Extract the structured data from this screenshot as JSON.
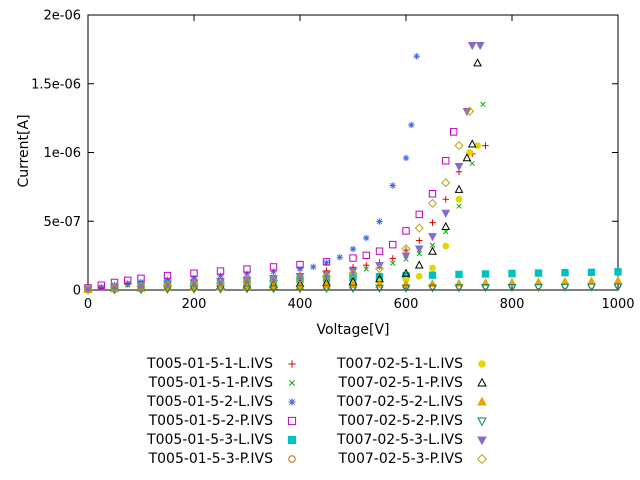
{
  "chart_data": {
    "type": "scatter",
    "title": "",
    "xlabel": "Voltage[V]",
    "ylabel": "Current[A]",
    "xlim": [
      0,
      1000
    ],
    "ylim": [
      0,
      2e-06
    ],
    "xticks": [
      0,
      200,
      400,
      600,
      800,
      1000
    ],
    "yticks": [
      {
        "v": 0,
        "label": "0"
      },
      {
        "v": 5e-07,
        "label": "5e-07"
      },
      {
        "v": 1e-06,
        "label": "1e-06"
      },
      {
        "v": 1.5e-06,
        "label": "1.5e-06"
      },
      {
        "v": 2e-06,
        "label": "2e-06"
      }
    ],
    "grid": false,
    "legend_position": "below-center-two-columns",
    "series": [
      {
        "name": "T005-01-5-1-L.IVS",
        "color": "#dd0000",
        "marker": "plus",
        "points": [
          [
            0,
            5e-09
          ],
          [
            25,
            1.8e-08
          ],
          [
            50,
            3.2e-08
          ],
          [
            75,
            4.2e-08
          ],
          [
            100,
            5.2e-08
          ],
          [
            150,
            6.4e-08
          ],
          [
            200,
            7.4e-08
          ],
          [
            250,
            8.4e-08
          ],
          [
            300,
            9.4e-08
          ],
          [
            350,
            1.05e-07
          ],
          [
            400,
            1.2e-07
          ],
          [
            450,
            1.4e-07
          ],
          [
            500,
            1.65e-07
          ],
          [
            525,
            1.8e-07
          ],
          [
            550,
            2e-07
          ],
          [
            575,
            2.3e-07
          ],
          [
            600,
            2.9e-07
          ],
          [
            625,
            3.6e-07
          ],
          [
            650,
            4.9e-07
          ],
          [
            675,
            6.6e-07
          ],
          [
            700,
            8.6e-07
          ],
          [
            725,
            9.9e-07
          ],
          [
            750,
            1.05e-06
          ]
        ]
      },
      {
        "name": "T005-01-5-1-P.IVS",
        "color": "#00b000",
        "marker": "cross",
        "points": [
          [
            0,
            4e-09
          ],
          [
            25,
            1.4e-08
          ],
          [
            50,
            2.6e-08
          ],
          [
            75,
            3.6e-08
          ],
          [
            100,
            4.4e-08
          ],
          [
            150,
            5.4e-08
          ],
          [
            200,
            6.4e-08
          ],
          [
            250,
            7.2e-08
          ],
          [
            300,
            8e-08
          ],
          [
            350,
            9e-08
          ],
          [
            400,
            1.02e-07
          ],
          [
            450,
            1.18e-07
          ],
          [
            500,
            1.38e-07
          ],
          [
            525,
            1.52e-07
          ],
          [
            550,
            1.72e-07
          ],
          [
            575,
            1.95e-07
          ],
          [
            600,
            2.25e-07
          ],
          [
            625,
            2.65e-07
          ],
          [
            650,
            3.25e-07
          ],
          [
            675,
            4.25e-07
          ],
          [
            700,
            6.1e-07
          ],
          [
            725,
            9.2e-07
          ],
          [
            745,
            1.35e-06
          ]
        ]
      },
      {
        "name": "T005-01-5-2-L.IVS",
        "color": "#4169e1",
        "marker": "asterisk",
        "points": [
          [
            0,
            6e-09
          ],
          [
            25,
            2e-08
          ],
          [
            50,
            3.6e-08
          ],
          [
            75,
            4.8e-08
          ],
          [
            100,
            5.8e-08
          ],
          [
            150,
            7.3e-08
          ],
          [
            200,
            8.8e-08
          ],
          [
            250,
            1.03e-07
          ],
          [
            300,
            1.18e-07
          ],
          [
            350,
            1.33e-07
          ],
          [
            400,
            1.53e-07
          ],
          [
            425,
            1.68e-07
          ],
          [
            450,
            1.98e-07
          ],
          [
            475,
            2.38e-07
          ],
          [
            500,
            2.98e-07
          ],
          [
            525,
            3.78e-07
          ],
          [
            550,
            4.98e-07
          ],
          [
            575,
            7.6e-07
          ],
          [
            600,
            9.6e-07
          ],
          [
            610,
            1.2e-06
          ],
          [
            620,
            1.7e-06
          ]
        ]
      },
      {
        "name": "T005-01-5-2-P.IVS",
        "color": "#c000c0",
        "marker": "square",
        "points": [
          [
            0,
            1.5e-08
          ],
          [
            25,
            3.5e-08
          ],
          [
            50,
            5.5e-08
          ],
          [
            75,
            7e-08
          ],
          [
            100,
            8.5e-08
          ],
          [
            150,
            1.05e-07
          ],
          [
            200,
            1.22e-07
          ],
          [
            250,
            1.38e-07
          ],
          [
            300,
            1.52e-07
          ],
          [
            350,
            1.68e-07
          ],
          [
            400,
            1.85e-07
          ],
          [
            450,
            2.05e-07
          ],
          [
            500,
            2.32e-07
          ],
          [
            525,
            2.52e-07
          ],
          [
            550,
            2.82e-07
          ],
          [
            575,
            3.3e-07
          ],
          [
            600,
            4.3e-07
          ],
          [
            625,
            5.5e-07
          ],
          [
            650,
            7e-07
          ],
          [
            675,
            9.4e-07
          ],
          [
            690,
            1.15e-06
          ]
        ]
      },
      {
        "name": "T005-01-5-3-L.IVS",
        "color": "#00c0c0",
        "marker": "square-filled",
        "points": [
          [
            0,
            5e-09
          ],
          [
            50,
            2e-08
          ],
          [
            100,
            3.4e-08
          ],
          [
            150,
            4.4e-08
          ],
          [
            200,
            5.2e-08
          ],
          [
            250,
            5.9e-08
          ],
          [
            300,
            6.5e-08
          ],
          [
            350,
            7.1e-08
          ],
          [
            400,
            7.7e-08
          ],
          [
            450,
            8.4e-08
          ],
          [
            500,
            9.1e-08
          ],
          [
            550,
            9.7e-08
          ],
          [
            600,
            1.03e-07
          ],
          [
            650,
            1.08e-07
          ],
          [
            700,
            1.13e-07
          ],
          [
            750,
            1.17e-07
          ],
          [
            800,
            1.2e-07
          ],
          [
            850,
            1.23e-07
          ],
          [
            900,
            1.26e-07
          ],
          [
            950,
            1.29e-07
          ],
          [
            1000,
            1.32e-07
          ]
        ]
      },
      {
        "name": "T005-01-5-3-P.IVS",
        "color": "#cc6600",
        "marker": "circle",
        "points": [
          [
            0,
            2e-09
          ],
          [
            50,
            5e-09
          ],
          [
            100,
            8e-09
          ],
          [
            150,
            1.1e-08
          ],
          [
            200,
            1.3e-08
          ],
          [
            250,
            1.5e-08
          ],
          [
            300,
            1.6e-08
          ],
          [
            350,
            1.8e-08
          ],
          [
            400,
            1.9e-08
          ],
          [
            450,
            2.1e-08
          ],
          [
            500,
            2.2e-08
          ],
          [
            550,
            2.3e-08
          ],
          [
            600,
            2.5e-08
          ],
          [
            650,
            2.6e-08
          ],
          [
            700,
            2.7e-08
          ],
          [
            750,
            2.8e-08
          ],
          [
            800,
            3e-08
          ],
          [
            850,
            3.1e-08
          ],
          [
            900,
            3.2e-08
          ],
          [
            950,
            3.3e-08
          ],
          [
            1000,
            3.4e-08
          ]
        ]
      },
      {
        "name": "T007-02-5-1-L.IVS",
        "color": "#e0d800",
        "marker": "circle-filled",
        "points": [
          [
            0,
            3e-09
          ],
          [
            50,
            1e-08
          ],
          [
            100,
            1.6e-08
          ],
          [
            150,
            2.1e-08
          ],
          [
            200,
            2.5e-08
          ],
          [
            250,
            2.9e-08
          ],
          [
            300,
            3.3e-08
          ],
          [
            350,
            3.7e-08
          ],
          [
            400,
            4.1e-08
          ],
          [
            450,
            4.6e-08
          ],
          [
            500,
            5.2e-08
          ],
          [
            550,
            6e-08
          ],
          [
            600,
            7.5e-08
          ],
          [
            625,
            1e-07
          ],
          [
            650,
            1.6e-07
          ],
          [
            675,
            3.2e-07
          ],
          [
            700,
            6.6e-07
          ],
          [
            720,
            1e-06
          ],
          [
            735,
            1.05e-06
          ]
        ]
      },
      {
        "name": "T007-02-5-1-P.IVS",
        "color": "#000000",
        "marker": "triangle",
        "points": [
          [
            0,
            3e-09
          ],
          [
            50,
            9e-09
          ],
          [
            100,
            1.4e-08
          ],
          [
            150,
            1.9e-08
          ],
          [
            200,
            2.4e-08
          ],
          [
            250,
            2.9e-08
          ],
          [
            300,
            3.4e-08
          ],
          [
            350,
            3.9e-08
          ],
          [
            400,
            4.5e-08
          ],
          [
            450,
            5.2e-08
          ],
          [
            500,
            6.2e-08
          ],
          [
            550,
            8e-08
          ],
          [
            600,
            1.2e-07
          ],
          [
            625,
            1.8e-07
          ],
          [
            650,
            2.8e-07
          ],
          [
            675,
            4.6e-07
          ],
          [
            700,
            7.3e-07
          ],
          [
            715,
            9.6e-07
          ],
          [
            725,
            1.06e-06
          ],
          [
            735,
            1.65e-06
          ]
        ]
      },
      {
        "name": "T007-02-5-2-L.IVS",
        "color": "#f0a000",
        "marker": "triangle-filled",
        "points": [
          [
            0,
            2e-09
          ],
          [
            50,
            7e-09
          ],
          [
            100,
            1.1e-08
          ],
          [
            150,
            1.5e-08
          ],
          [
            200,
            1.8e-08
          ],
          [
            250,
            2.1e-08
          ],
          [
            300,
            2.4e-08
          ],
          [
            350,
            2.7e-08
          ],
          [
            400,
            3e-08
          ],
          [
            450,
            3.3e-08
          ],
          [
            500,
            3.6e-08
          ],
          [
            550,
            3.9e-08
          ],
          [
            600,
            4.2e-08
          ],
          [
            650,
            4.5e-08
          ],
          [
            700,
            4.8e-08
          ],
          [
            750,
            5.1e-08
          ],
          [
            800,
            5.4e-08
          ],
          [
            850,
            5.7e-08
          ],
          [
            900,
            6e-08
          ],
          [
            950,
            6.3e-08
          ],
          [
            1000,
            6.6e-08
          ]
        ]
      },
      {
        "name": "T007-02-5-2-P.IVS",
        "color": "#00876c",
        "marker": "triangle-down",
        "points": [
          [
            0,
            1e-09
          ],
          [
            50,
            3e-09
          ],
          [
            100,
            5e-09
          ],
          [
            150,
            7e-09
          ],
          [
            200,
            8e-09
          ],
          [
            250,
            9e-09
          ],
          [
            300,
            1e-08
          ],
          [
            350,
            1.1e-08
          ],
          [
            400,
            1.2e-08
          ],
          [
            450,
            1.3e-08
          ],
          [
            500,
            1.4e-08
          ],
          [
            550,
            1.5e-08
          ],
          [
            600,
            1.6e-08
          ],
          [
            650,
            1.7e-08
          ],
          [
            700,
            1.8e-08
          ],
          [
            750,
            1.9e-08
          ],
          [
            800,
            2e-08
          ],
          [
            850,
            2.1e-08
          ],
          [
            900,
            2.2e-08
          ],
          [
            950,
            2.3e-08
          ],
          [
            1000,
            2.4e-08
          ]
        ]
      },
      {
        "name": "T007-02-5-3-L.IVS",
        "color": "#8968cd",
        "marker": "triangle-down-filled",
        "points": [
          [
            0,
            5e-09
          ],
          [
            50,
            2e-08
          ],
          [
            100,
            3.2e-08
          ],
          [
            150,
            4.3e-08
          ],
          [
            200,
            5.3e-08
          ],
          [
            250,
            6.3e-08
          ],
          [
            300,
            7.3e-08
          ],
          [
            350,
            8.5e-08
          ],
          [
            400,
            9.9e-08
          ],
          [
            450,
            1.16e-07
          ],
          [
            500,
            1.4e-07
          ],
          [
            550,
            1.8e-07
          ],
          [
            600,
            2.5e-07
          ],
          [
            625,
            3e-07
          ],
          [
            650,
            3.9e-07
          ],
          [
            675,
            5.6e-07
          ],
          [
            700,
            9e-07
          ],
          [
            715,
            1.3e-06
          ],
          [
            725,
            1.78e-06
          ],
          [
            740,
            1.78e-06
          ]
        ]
      },
      {
        "name": "T007-02-5-3-P.IVS",
        "color": "#c0a000",
        "marker": "diamond",
        "points": [
          [
            0,
            4e-09
          ],
          [
            50,
            1.5e-08
          ],
          [
            100,
            2.5e-08
          ],
          [
            150,
            3.4e-08
          ],
          [
            200,
            4.2e-08
          ],
          [
            250,
            5.1e-08
          ],
          [
            300,
            6e-08
          ],
          [
            350,
            7e-08
          ],
          [
            400,
            8.2e-08
          ],
          [
            450,
            9.8e-08
          ],
          [
            500,
            1.2e-07
          ],
          [
            550,
            1.55e-07
          ],
          [
            600,
            3e-07
          ],
          [
            625,
            4.5e-07
          ],
          [
            650,
            6.3e-07
          ],
          [
            675,
            7.8e-07
          ],
          [
            700,
            1.05e-06
          ],
          [
            720,
            1.3e-06
          ]
        ]
      }
    ]
  }
}
